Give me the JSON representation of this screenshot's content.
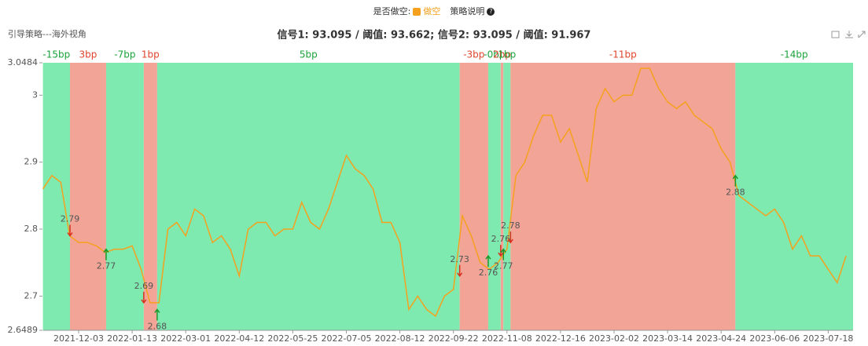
{
  "header": {
    "toggle_label": "是否做空:",
    "toggle_option": "做空",
    "help_label": "策略说明"
  },
  "chart_data": {
    "type": "line",
    "subtitle": "引导策略---海外视角",
    "title": "信号1: 93.095 / 阈值: 93.662; 信号2: 93.095 / 阈值: 91.967",
    "categories": [
      null,
      null,
      null,
      null,
      "2021-12-03",
      null,
      null,
      null,
      null,
      null,
      "2022-01-13",
      null,
      null,
      null,
      null,
      null,
      "2022-03-01",
      null,
      null,
      null,
      null,
      null,
      "2022-04-12",
      null,
      null,
      null,
      null,
      null,
      "2022-05-25",
      null,
      null,
      null,
      null,
      null,
      "2022-07-05",
      null,
      null,
      null,
      null,
      null,
      "2022-08-12",
      null,
      null,
      null,
      null,
      null,
      "2022-09-22",
      null,
      null,
      null,
      null,
      null,
      "2022-11-08",
      null,
      null,
      null,
      null,
      null,
      "2022-12-16",
      null,
      null,
      null,
      null,
      null,
      "2023-02-02",
      null,
      null,
      null,
      null,
      null,
      "2023-03-14",
      null,
      null,
      null,
      null,
      null,
      "2023-04-24",
      null,
      null,
      null,
      null,
      null,
      "2023-06-06",
      null,
      null,
      null,
      null,
      null,
      "2023-07-18",
      null,
      null
    ],
    "series": [
      {
        "name": "引导策略",
        "color": "#f5a11e",
        "values": [
          2.86,
          2.88,
          2.87,
          2.79,
          2.78,
          2.78,
          2.775,
          2.765,
          2.77,
          2.77,
          2.775,
          2.74,
          2.69,
          2.69,
          2.8,
          2.81,
          2.79,
          2.83,
          2.82,
          2.78,
          2.79,
          2.77,
          2.73,
          2.8,
          2.81,
          2.81,
          2.79,
          2.8,
          2.8,
          2.84,
          2.81,
          2.8,
          2.83,
          2.87,
          2.91,
          2.89,
          2.88,
          2.86,
          2.81,
          2.81,
          2.78,
          2.68,
          2.7,
          2.68,
          2.67,
          2.7,
          2.71,
          2.82,
          2.79,
          2.75,
          2.74,
          2.75,
          2.77,
          2.88,
          2.9,
          2.94,
          2.97,
          2.97,
          2.93,
          2.95,
          2.91,
          2.87,
          2.98,
          3.01,
          2.99,
          3,
          3,
          3.04,
          3.04,
          3.01,
          2.99,
          2.98,
          2.99,
          2.97,
          2.96,
          2.95,
          2.92,
          2.9,
          2.85,
          2.84,
          2.83,
          2.82,
          2.83,
          2.81,
          2.77,
          2.79,
          2.76,
          2.76,
          2.74,
          2.72,
          2.76
        ]
      }
    ],
    "ylim": [
      2.6489,
      3.0484
    ],
    "yticks": [
      2.6489,
      2.7,
      2.8,
      2.9,
      3,
      3.0484
    ],
    "grid": false,
    "regions": [
      {
        "label": "-15bp",
        "color": "#7eeab0",
        "start": 0,
        "end": 3.03
      },
      {
        "label": "3bp",
        "color": "#f2a496",
        "start": 3.03,
        "end": 7.08
      },
      {
        "label": "-7bp",
        "color": "#7eeab0",
        "start": 7.08,
        "end": 11.3
      },
      {
        "label": "1bp",
        "color": "#f2a496",
        "start": 11.3,
        "end": 12.8
      },
      {
        "label": "5bp",
        "color": "#7eeab0",
        "start": 12.8,
        "end": 46.7
      },
      {
        "label": "-3bp",
        "color": "#f2a496",
        "start": 46.7,
        "end": 49.9
      },
      {
        "label": "-0bp",
        "color": "#7eeab0",
        "start": 49.9,
        "end": 51.3
      },
      {
        "label": "2bp",
        "color": "#f2a496",
        "start": 51.3,
        "end": 51.6
      },
      {
        "label": "1bp",
        "color": "#7eeab0",
        "start": 51.6,
        "end": 52.4
      },
      {
        "label": "-11bp",
        "color": "#f2a496",
        "start": 52.4,
        "end": 77.6
      },
      {
        "label": "-14bp",
        "color": "#7eeab0",
        "start": 77.6,
        "end": 90.8
      }
    ],
    "signals": [
      {
        "x": 3.03,
        "value": 2.79,
        "direction": "down",
        "color": "#d9301c"
      },
      {
        "x": 7.08,
        "value": 2.77,
        "direction": "up",
        "color": "#1a9a2a"
      },
      {
        "x": 11.3,
        "value": 2.69,
        "direction": "down",
        "color": "#d9301c"
      },
      {
        "x": 12.8,
        "value": 2.68,
        "direction": "up",
        "color": "#1a9a2a"
      },
      {
        "x": 46.7,
        "value": 2.73,
        "direction": "down",
        "color": "#d9301c"
      },
      {
        "x": 49.9,
        "value": 2.76,
        "direction": "up",
        "color": "#1a9a2a"
      },
      {
        "x": 51.3,
        "value": 2.76,
        "direction": "down",
        "color": "#d9301c"
      },
      {
        "x": 51.6,
        "value": 2.77,
        "direction": "up",
        "color": "#1a9a2a"
      },
      {
        "x": 52.4,
        "value": 2.78,
        "direction": "down",
        "color": "#d9301c"
      },
      {
        "x": 77.6,
        "value": 2.88,
        "direction": "up",
        "color": "#1a9a2a"
      }
    ]
  }
}
